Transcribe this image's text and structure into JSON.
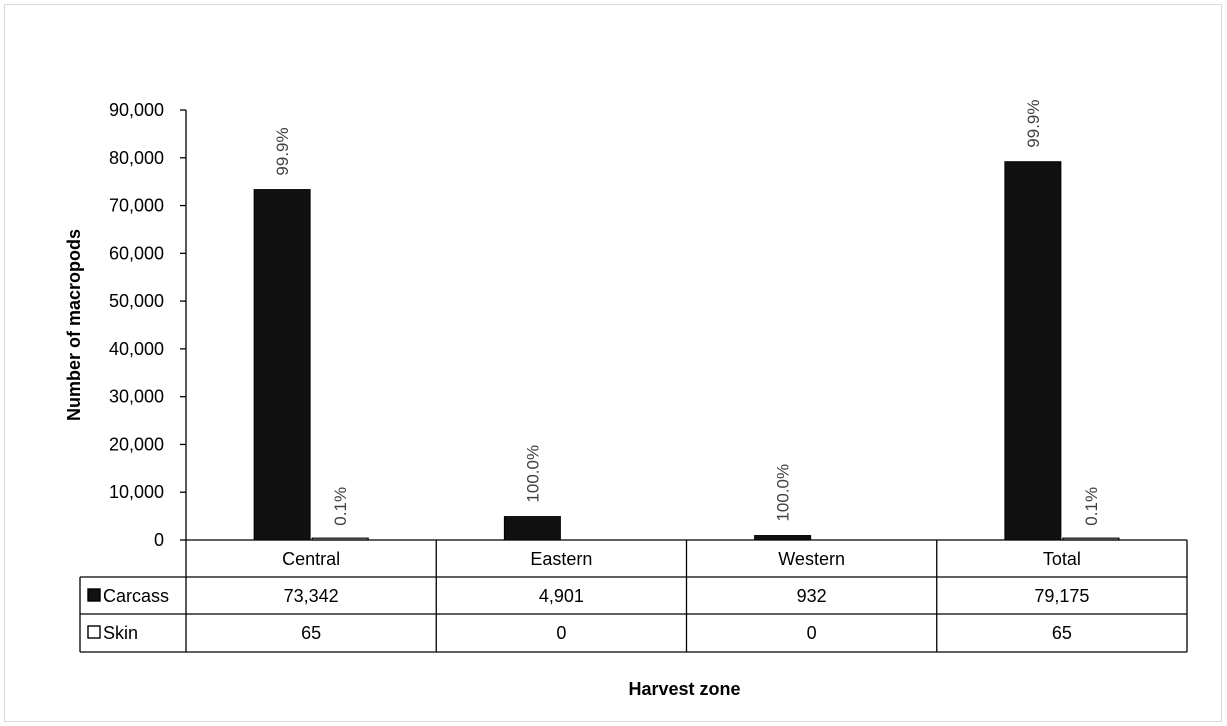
{
  "chart_data": {
    "type": "bar",
    "xlabel": "Harvest zone",
    "ylabel": "Number of macropods",
    "ylim": [
      0,
      90000
    ],
    "yticks": [
      0,
      10000,
      20000,
      30000,
      40000,
      50000,
      60000,
      70000,
      80000,
      90000
    ],
    "ytick_labels": [
      "0",
      "10,000",
      "20,000",
      "30,000",
      "40,000",
      "50,000",
      "60,000",
      "70,000",
      "80,000",
      "90,000"
    ],
    "categories": [
      "Central",
      "Eastern",
      "Western",
      "Total"
    ],
    "series": [
      {
        "name": "Carcass",
        "values": [
          73342,
          4901,
          932,
          79175
        ],
        "value_labels": [
          "73,342",
          "4,901",
          "932",
          "79,175"
        ],
        "percent_labels": [
          "99.9%",
          "100.0%",
          "100.0%",
          "99.9%"
        ],
        "color": "#111111"
      },
      {
        "name": "Skin",
        "values": [
          65,
          0,
          0,
          65
        ],
        "value_labels": [
          "65",
          "0",
          "0",
          "65"
        ],
        "percent_labels": [
          "0.1%",
          "",
          "",
          "0.1%"
        ],
        "color": "#ffffff"
      }
    ],
    "legend": "data-table",
    "grid": false
  }
}
